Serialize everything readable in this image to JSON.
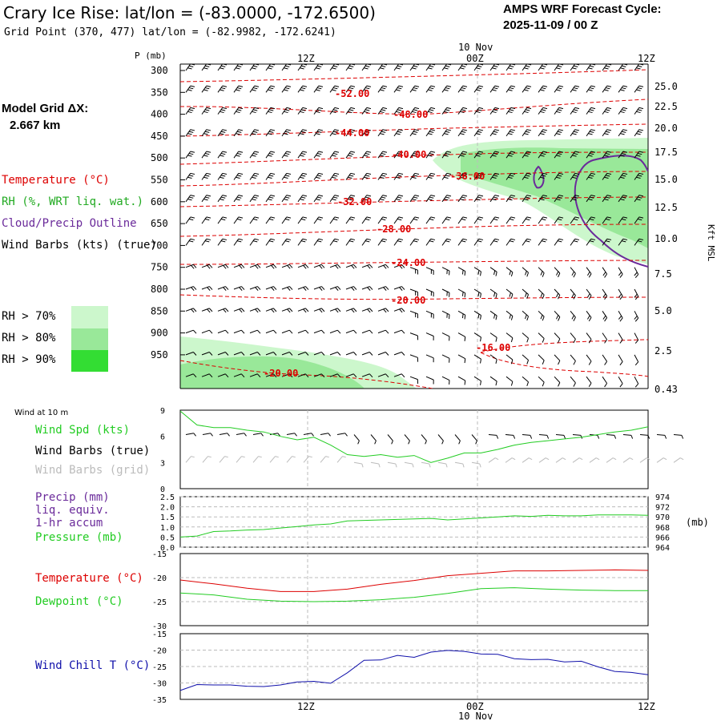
{
  "header": {
    "title": "Crary Ice Rise:  lat/lon = (-83.0000, -172.6500)",
    "grid_point": "Grid Point (370, 477) lat/lon = (-82.9982, -172.6241)",
    "cycle_label": "AMPS WRF Forecast Cycle:",
    "cycle_value": "2025-11-09 / 00  Z",
    "model_grid_label": "Model Grid ΔX:",
    "model_grid_value": "2.667 km"
  },
  "legend": {
    "temperature": "Temperature (°C)",
    "rh": "RH (%, WRT liq. wat.)",
    "cloud": "Cloud/Precip Outline",
    "wind": "Wind Barbs (kts) (true)",
    "rh_levels": [
      {
        "label": "RH > 70%",
        "color": "#ccf7cc"
      },
      {
        "label": "RH > 80%",
        "color": "#99e899"
      },
      {
        "label": "RH > 90%",
        "color": "#33dd33"
      }
    ]
  },
  "colors": {
    "temperature": "#dd0000",
    "rh70": "#ccf7cc",
    "rh80": "#99e899",
    "rh90": "#33dd33",
    "cloud": "#6a2a9a",
    "wind_true": "#000000",
    "wind_grid": "#bbbbbb",
    "green_line": "#22cc22",
    "wind_chill": "#1010aa",
    "gridline": "#bbbbbb"
  },
  "chart_data": [
    {
      "type": "heatmap",
      "name": "cross-section",
      "y_title": "P (mb)",
      "y_right_title": "Kft MSL",
      "pressure_ticks": [
        300,
        350,
        400,
        450,
        500,
        550,
        600,
        650,
        700,
        750,
        800,
        850,
        900,
        950
      ],
      "kft_ticks": [
        "25.0",
        "22.5",
        "20.0",
        "17.5",
        "15.0",
        "12.5",
        "10.0",
        "7.5",
        "5.0",
        "2.5",
        "0.43"
      ],
      "x_ticks": [
        "12Z",
        "00Z",
        "12Z"
      ],
      "x_date": "10 Nov",
      "temperature_labels": [
        "-52.00",
        "-48.00",
        "-44.00",
        "-40.00",
        "-36.00",
        "-32.00",
        "-28.00",
        "-24.00",
        "-20.00",
        "-16.00",
        "-20.00"
      ]
    },
    {
      "type": "line",
      "name": "wind-10m",
      "panel_title": "Wind at 10 m",
      "labels": [
        "Wind Spd (kts)",
        "Wind Barbs (true)",
        "Wind Barbs (grid)"
      ],
      "ylim": [
        0,
        9
      ],
      "y_ticks": [
        "9",
        "6",
        "3",
        "0"
      ],
      "series": [
        {
          "name": "Wind Spd (kts)",
          "x": [
            0,
            3,
            6,
            9,
            12,
            15,
            18,
            21,
            24,
            27,
            30,
            33,
            36,
            39,
            42,
            45,
            48,
            51,
            54,
            57,
            60,
            63,
            66,
            69,
            72,
            75,
            78,
            81,
            84
          ],
          "values": [
            8.9,
            7.3,
            7.0,
            7.0,
            6.7,
            6.5,
            6.0,
            5.6,
            5.9,
            5.0,
            3.9,
            3.7,
            3.9,
            3.6,
            3.8,
            3.0,
            3.5,
            4.1,
            4.1,
            4.5,
            5.0,
            5.3,
            5.5,
            5.7,
            5.9,
            6.2,
            6.5,
            6.7,
            7.1
          ]
        }
      ]
    },
    {
      "type": "line",
      "name": "precip-pressure",
      "labels": [
        "Precip (mm)",
        "liq. equiv.",
        "1-hr accum",
        "Pressure (mb)"
      ],
      "left_ticks": [
        "2.5",
        "2.0",
        "1.5",
        "1.0",
        "0.5",
        "0.0"
      ],
      "right_ticks": [
        "974",
        "972",
        "970",
        "968",
        "966",
        "964"
      ],
      "right_unit": "(mb)",
      "ylim_precip": [
        0,
        2.5
      ],
      "ylim_pressure": [
        964,
        974
      ],
      "series": [
        {
          "name": "Pressure (mb)",
          "x": [
            0,
            3,
            6,
            9,
            12,
            15,
            18,
            21,
            24,
            27,
            30,
            33,
            36,
            39,
            42,
            45,
            48,
            51,
            54,
            57,
            60,
            63,
            66,
            69,
            72,
            75,
            78,
            81,
            84
          ],
          "values": [
            966.0,
            966.2,
            967.1,
            967.2,
            967.4,
            967.5,
            967.8,
            968.1,
            968.4,
            968.6,
            969.2,
            969.3,
            969.4,
            969.5,
            969.6,
            969.7,
            969.4,
            969.6,
            969.8,
            970.0,
            970.2,
            970.1,
            970.3,
            970.2,
            970.2,
            970.4,
            970.4,
            970.4,
            970.3
          ]
        }
      ]
    },
    {
      "type": "line",
      "name": "temperature-dewpoint",
      "labels": [
        "Temperature (°C)",
        "Dewpoint (°C)"
      ],
      "ylim": [
        -30,
        -15
      ],
      "y_ticks": [
        "-15",
        "-20",
        "-25",
        "-30"
      ],
      "series": [
        {
          "name": "Temperature (°C)",
          "x": [
            0,
            6,
            12,
            18,
            24,
            30,
            36,
            42,
            48,
            54,
            60,
            66,
            72,
            78,
            84
          ],
          "values": [
            -20.5,
            -21.3,
            -22.2,
            -22.9,
            -22.9,
            -22.4,
            -21.4,
            -20.6,
            -19.6,
            -19.1,
            -18.6,
            -18.6,
            -18.5,
            -18.4,
            -18.5
          ]
        },
        {
          "name": "Dewpoint (°C)",
          "x": [
            0,
            6,
            12,
            18,
            24,
            30,
            36,
            42,
            48,
            54,
            60,
            66,
            72,
            78,
            84
          ],
          "values": [
            -23.2,
            -23.6,
            -24.5,
            -24.9,
            -25.0,
            -24.9,
            -24.6,
            -24.1,
            -23.3,
            -22.3,
            -22.1,
            -22.4,
            -22.6,
            -22.7,
            -22.7
          ]
        }
      ]
    },
    {
      "type": "line",
      "name": "wind-chill",
      "labels": [
        "Wind Chill T (°C)"
      ],
      "ylim": [
        -35,
        -15
      ],
      "y_ticks": [
        "-15",
        "-20",
        "-25",
        "-30",
        "-35"
      ],
      "x_ticks": [
        "12Z",
        "00Z",
        "12Z"
      ],
      "x_date": "10 Nov",
      "series": [
        {
          "name": "Wind Chill T (°C)",
          "x": [
            0,
            3,
            6,
            9,
            12,
            15,
            18,
            21,
            24,
            27,
            30,
            33,
            36,
            39,
            42,
            45,
            48,
            51,
            54,
            57,
            60,
            63,
            66,
            69,
            72,
            75,
            78,
            81,
            84
          ],
          "values": [
            -32.3,
            -30.5,
            -30.6,
            -30.6,
            -31.0,
            -31.1,
            -30.6,
            -29.7,
            -29.5,
            -30.1,
            -26.9,
            -23.1,
            -23.0,
            -21.6,
            -22.2,
            -20.6,
            -20.1,
            -20.4,
            -21.2,
            -21.3,
            -22.6,
            -22.9,
            -22.8,
            -23.6,
            -23.4,
            -25.1,
            -26.5,
            -26.8,
            -27.5
          ]
        }
      ]
    }
  ]
}
